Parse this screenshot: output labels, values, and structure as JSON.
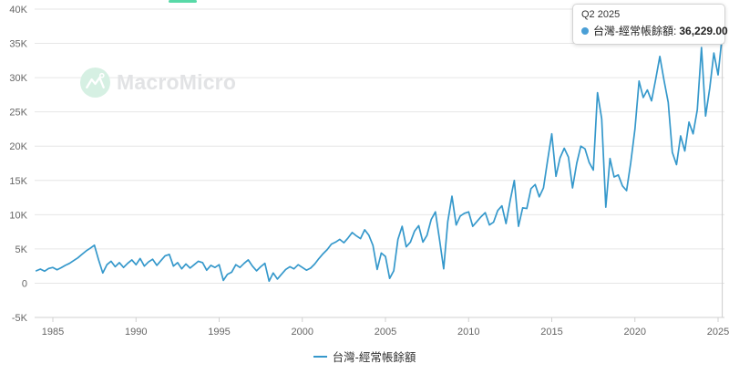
{
  "accent_color": "#58d9a7",
  "watermark": {
    "brand": "MacroMicro"
  },
  "tooltip": {
    "period": "Q2 2025",
    "series_label": "台灣-經常帳餘額:",
    "value": "36,229.00",
    "dot_color": "#4a9fd6"
  },
  "legend": {
    "label": "台灣-經常帳餘額",
    "marker_color": "#3598cb"
  },
  "colors": {
    "line": "#3598cb",
    "grid": "#e6e6e6",
    "axis": "#d0d0d0",
    "axis_text": "#666666",
    "crosshair": "#cccccc"
  },
  "chart_data": {
    "type": "line",
    "title": "",
    "series": [
      {
        "name": "台灣-經常帳餘額",
        "color": "#3598cb"
      }
    ],
    "unit": "USD million",
    "frequency": "quarterly",
    "start_period": "1984-Q1",
    "end_period": "2025-Q2",
    "highlight": {
      "period": "Q2 2025",
      "value": 36229
    },
    "x_ticks": [
      1985,
      1990,
      1995,
      2000,
      2005,
      2010,
      2015,
      2020,
      2025
    ],
    "y_tick_values": [
      40000,
      35000,
      30000,
      25000,
      20000,
      15000,
      10000,
      5000,
      0,
      -5000
    ],
    "y_tick_labels": [
      "40K",
      "35K",
      "30K",
      "25K",
      "20K",
      "15K",
      "10K",
      "5K",
      "0",
      "-5K"
    ],
    "ylim": [
      -5000,
      40000
    ],
    "grid": "horizontal",
    "legend_position": "bottom",
    "values": [
      1800,
      2050,
      1750,
      2150,
      2300,
      1950,
      2250,
      2600,
      2900,
      3300,
      3700,
      4200,
      4700,
      5100,
      5550,
      3400,
      1500,
      2700,
      3200,
      2400,
      3000,
      2300,
      2900,
      3400,
      2700,
      3600,
      2500,
      3100,
      3500,
      2600,
      3300,
      4000,
      4200,
      2500,
      3000,
      2100,
      2800,
      2200,
      2700,
      3200,
      3000,
      1900,
      2600,
      2300,
      2700,
      400,
      1300,
      1600,
      2700,
      2300,
      2900,
      3400,
      2500,
      1800,
      2400,
      2900,
      300,
      1500,
      600,
      1300,
      2000,
      2400,
      2100,
      2700,
      2300,
      1900,
      2200,
      2800,
      3600,
      4300,
      4900,
      5700,
      6000,
      6400,
      5900,
      6600,
      7400,
      6900,
      6500,
      7800,
      7000,
      5500,
      2000,
      4400,
      3900,
      700,
      1800,
      6400,
      8300,
      5300,
      6000,
      7600,
      8400,
      6000,
      7000,
      9300,
      10400,
      6400,
      2100,
      9000,
      12700,
      8500,
      9800,
      10200,
      10400,
      8300,
      9000,
      9700,
      10300,
      8500,
      8900,
      10600,
      11300,
      8700,
      12100,
      15000,
      8300,
      11000,
      10900,
      13800,
      14400,
      12600,
      13900,
      17900,
      21800,
      15600,
      18300,
      19700,
      18400,
      13900,
      17500,
      20000,
      19600,
      17600,
      16500,
      27800,
      24000,
      11100,
      18200,
      15500,
      15800,
      14200,
      13500,
      17600,
      22500,
      29500,
      27100,
      28200,
      26600,
      29800,
      33100,
      29600,
      26400,
      19100,
      17300,
      21500,
      19300,
      23500,
      21800,
      25300,
      34400,
      24400,
      28500,
      33600,
      30400,
      36229
    ]
  }
}
